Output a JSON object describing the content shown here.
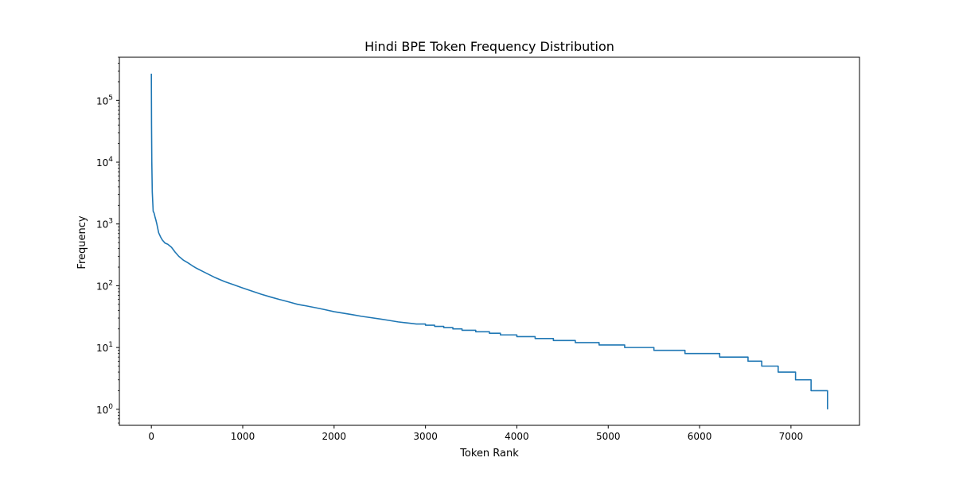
{
  "chart_data": {
    "type": "line",
    "title": "Hindi BPE Token Frequency Distribution",
    "xlabel": "Token Rank",
    "ylabel": "Frequency",
    "xlim": [
      -350,
      7750
    ],
    "ylim": [
      0.55,
      500000
    ],
    "yscale": "log",
    "x_ticks": [
      0,
      1000,
      2000,
      3000,
      4000,
      5000,
      6000,
      7000
    ],
    "y_ticks": [
      {
        "value": 1,
        "base": "10",
        "exp": "0"
      },
      {
        "value": 10,
        "base": "10",
        "exp": "1"
      },
      {
        "value": 100,
        "base": "10",
        "exp": "2"
      },
      {
        "value": 1000,
        "base": "10",
        "exp": "3"
      },
      {
        "value": 10000,
        "base": "10",
        "exp": "4"
      },
      {
        "value": 100000,
        "base": "10",
        "exp": "5"
      }
    ],
    "grid": false,
    "line_color": "#1f77b4",
    "series": [
      {
        "x": [
          0,
          2,
          5,
          10,
          20,
          30,
          40,
          50,
          60,
          80,
          100,
          120,
          150,
          180,
          220,
          260,
          300,
          350,
          400,
          450,
          500,
          600,
          700,
          800,
          900,
          1000,
          1100,
          1200,
          1300,
          1400,
          1500,
          1600,
          1700,
          1800,
          1900,
          2000,
          2100,
          2200,
          2300,
          2400,
          2500,
          2600,
          2700,
          2800,
          2900,
          3000,
          3100,
          3200,
          3300,
          3400,
          3550,
          3700,
          3820,
          4000,
          4200,
          4400,
          4640,
          4900,
          5180,
          5500,
          5840,
          6220,
          6530,
          6680,
          6860,
          7050,
          7220,
          7400
        ],
        "y": [
          270000,
          40000,
          10000,
          3300,
          1600,
          1500,
          1300,
          1150,
          1000,
          720,
          620,
          550,
          490,
          470,
          420,
          350,
          300,
          260,
          235,
          210,
          190,
          160,
          135,
          117,
          104,
          92,
          82,
          73,
          66,
          60,
          55,
          50,
          47,
          44,
          41,
          38,
          36,
          34,
          32,
          30.5,
          29,
          27.5,
          26,
          25,
          24,
          23,
          22,
          21,
          20,
          19,
          18,
          17,
          16,
          15,
          14,
          13,
          12,
          11,
          10,
          9,
          8,
          7,
          6,
          5,
          4,
          3,
          2,
          1
        ]
      }
    ]
  }
}
